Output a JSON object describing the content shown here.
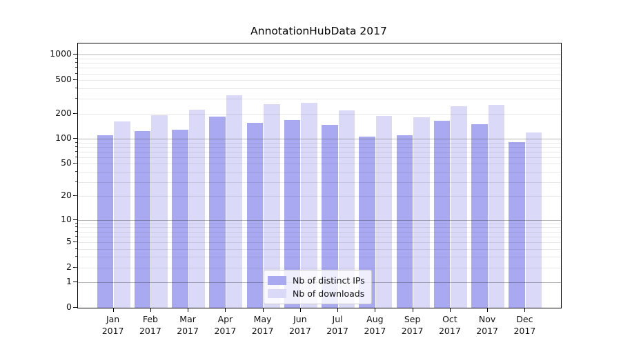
{
  "figure": {
    "title": "AnnotationHubData 2017",
    "background_color": "#ffffff"
  },
  "chart_data": {
    "type": "bar",
    "title": "AnnotationHubData 2017",
    "categories": [
      "Jan 2017",
      "Feb 2017",
      "Mar 2017",
      "Apr 2017",
      "May 2017",
      "Jun 2017",
      "Jul 2017",
      "Aug 2017",
      "Sep 2017",
      "Oct 2017",
      "Nov 2017",
      "Dec 2017"
    ],
    "months": [
      "Jan",
      "Feb",
      "Mar",
      "Apr",
      "May",
      "Jun",
      "Jul",
      "Aug",
      "Sep",
      "Oct",
      "Nov",
      "Dec"
    ],
    "year_label": "2017",
    "series": [
      {
        "name": "Nb of distinct IPs",
        "color": "#a9a9f2",
        "values": [
          110,
          124,
          129,
          184,
          154,
          169,
          147,
          107,
          111,
          163,
          149,
          92
        ]
      },
      {
        "name": "Nb of downloads",
        "color": "#dadaf8",
        "values": [
          160,
          191,
          222,
          329,
          258,
          270,
          217,
          188,
          180,
          246,
          254,
          119
        ]
      }
    ],
    "xlabel": "",
    "ylabel": "",
    "yscale": "log1p",
    "ylim": [
      0,
      1362
    ],
    "yticks_labeled": [
      0,
      1,
      2,
      5,
      10,
      20,
      50,
      100,
      200,
      500,
      1000
    ],
    "yticks_major_grid": [
      1,
      10,
      100,
      1000
    ],
    "grid": true,
    "legend_position": "lower center",
    "bar_color_ips": "#a9a9f2",
    "bar_color_downloads": "#dadaf8"
  },
  "legend": {
    "items": [
      {
        "label": "Nb of distinct IPs",
        "color": "#a9a9f2"
      },
      {
        "label": "Nb of downloads",
        "color": "#dadaf8"
      }
    ]
  }
}
